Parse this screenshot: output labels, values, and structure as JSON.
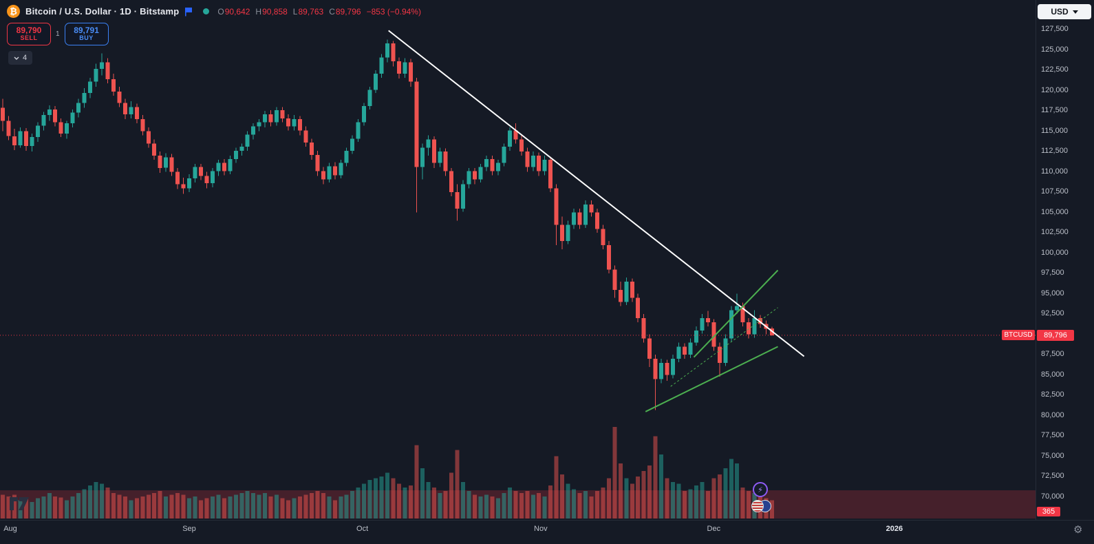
{
  "header": {
    "symbol_icon": "₿",
    "title": "Bitcoin / U.S. Dollar · 1D · Bitstamp",
    "ohlc": {
      "o_label": "O",
      "o": "90,642",
      "h_label": "H",
      "h": "90,858",
      "l_label": "L",
      "l": "89,763",
      "c_label": "C",
      "c": "89,796",
      "change": "−853 (−0.94%)"
    },
    "currency_button": "USD"
  },
  "trade": {
    "sell_price": "89,790",
    "sell_label": "SELL",
    "spread": "1",
    "buy_price": "89,791",
    "buy_label": "BUY",
    "indicator_count": "4"
  },
  "badges": {
    "symbol": "BTCUSD",
    "price": "89,796",
    "band": "365"
  },
  "icons": {
    "gear": "⚙",
    "bolt": "⚡"
  },
  "colors": {
    "background": "#151a25",
    "up": "#26a69a",
    "down": "#ef5350",
    "vol_up": "rgba(38,166,154,0.5)",
    "vol_down": "rgba(239,83,80,0.5)",
    "band": "rgba(242,54,69,0.22)",
    "accent_red": "#f23645",
    "accent_blue": "#2962ff",
    "trendline": "#ffffff",
    "channel": "#4caf50"
  },
  "chart_data": {
    "type": "candlestick",
    "symbol": "BTCUSD",
    "timeframe": "1D",
    "exchange": "Bitstamp",
    "current_price": 89796,
    "y_axis": {
      "min": 70000,
      "max": 127500,
      "step": 2500
    },
    "x_labels": [
      {
        "label": "Aug",
        "i": 1.3
      },
      {
        "label": "Sep",
        "i": 32
      },
      {
        "label": "Oct",
        "i": 61.7
      },
      {
        "label": "Nov",
        "i": 92.3
      },
      {
        "label": "Dec",
        "i": 122
      },
      {
        "label": "2026",
        "i": 153,
        "major": true
      }
    ],
    "candles": [
      [
        117800,
        118900,
        114900,
        116200,
        26
      ],
      [
        116200,
        116800,
        113800,
        114300,
        24
      ],
      [
        114300,
        115200,
        112600,
        113200,
        26
      ],
      [
        113200,
        115400,
        112900,
        114900,
        20
      ],
      [
        114900,
        115300,
        112500,
        113100,
        22
      ],
      [
        113100,
        114600,
        112400,
        114200,
        18
      ],
      [
        114200,
        116000,
        113600,
        115600,
        22
      ],
      [
        115600,
        117300,
        115000,
        116900,
        24
      ],
      [
        116900,
        118100,
        116200,
        117600,
        28
      ],
      [
        117600,
        118000,
        115500,
        116000,
        24
      ],
      [
        116000,
        116500,
        114200,
        114600,
        23
      ],
      [
        114600,
        116200,
        114000,
        115900,
        20
      ],
      [
        115900,
        117600,
        115400,
        117200,
        24
      ],
      [
        117200,
        118900,
        116600,
        118400,
        28
      ],
      [
        118400,
        120200,
        117800,
        119600,
        32
      ],
      [
        119600,
        121500,
        119000,
        121000,
        36
      ],
      [
        121000,
        123200,
        120400,
        122600,
        40
      ],
      [
        122600,
        124500,
        121800,
        123400,
        38
      ],
      [
        123400,
        123900,
        120800,
        121300,
        34
      ],
      [
        121300,
        122000,
        119300,
        119800,
        28
      ],
      [
        119800,
        120400,
        117900,
        118400,
        26
      ],
      [
        118400,
        118900,
        116400,
        117000,
        24
      ],
      [
        117000,
        118600,
        116500,
        117900,
        20
      ],
      [
        117900,
        118300,
        115900,
        116400,
        22
      ],
      [
        116400,
        116900,
        114400,
        114900,
        24
      ],
      [
        114900,
        115400,
        112900,
        113400,
        26
      ],
      [
        113400,
        113900,
        111400,
        111900,
        28
      ],
      [
        111900,
        112400,
        109800,
        110400,
        30
      ],
      [
        110400,
        112200,
        109900,
        111700,
        24
      ],
      [
        111700,
        112100,
        109400,
        109900,
        26
      ],
      [
        109900,
        110400,
        107800,
        108400,
        28
      ],
      [
        108400,
        109200,
        107200,
        107900,
        26
      ],
      [
        107900,
        109600,
        107400,
        109100,
        22
      ],
      [
        109100,
        110900,
        108600,
        110500,
        24
      ],
      [
        110500,
        110900,
        108900,
        109400,
        20
      ],
      [
        109400,
        109900,
        107900,
        108500,
        22
      ],
      [
        108500,
        110400,
        108000,
        110000,
        24
      ],
      [
        110000,
        111400,
        109400,
        111000,
        26
      ],
      [
        111000,
        111500,
        109500,
        110000,
        22
      ],
      [
        110000,
        111900,
        109600,
        111500,
        24
      ],
      [
        111500,
        112900,
        111000,
        112500,
        26
      ],
      [
        112500,
        113400,
        111900,
        113000,
        28
      ],
      [
        113000,
        114900,
        112500,
        114500,
        30
      ],
      [
        114500,
        115900,
        113900,
        115500,
        28
      ],
      [
        115500,
        116400,
        114900,
        116000,
        26
      ],
      [
        116000,
        117400,
        115400,
        117000,
        28
      ],
      [
        117000,
        117500,
        115500,
        116000,
        24
      ],
      [
        116000,
        117900,
        115600,
        117500,
        26
      ],
      [
        117500,
        117900,
        116000,
        116500,
        22
      ],
      [
        116500,
        117000,
        115000,
        115500,
        20
      ],
      [
        115500,
        116900,
        115000,
        116400,
        22
      ],
      [
        116400,
        116800,
        114400,
        115000,
        24
      ],
      [
        115000,
        115500,
        113000,
        113500,
        26
      ],
      [
        113500,
        114000,
        111400,
        112000,
        28
      ],
      [
        112000,
        112500,
        109400,
        110000,
        30
      ],
      [
        110000,
        110500,
        108400,
        109000,
        28
      ],
      [
        109000,
        111000,
        108600,
        110600,
        24
      ],
      [
        110600,
        111100,
        109000,
        109500,
        20
      ],
      [
        109500,
        111400,
        109100,
        111000,
        24
      ],
      [
        111000,
        112900,
        110600,
        112500,
        26
      ],
      [
        112500,
        114400,
        112100,
        114000,
        30
      ],
      [
        114000,
        116400,
        113600,
        116000,
        34
      ],
      [
        116000,
        118400,
        115600,
        118000,
        38
      ],
      [
        118000,
        120400,
        117600,
        120000,
        42
      ],
      [
        120000,
        122400,
        119600,
        122000,
        44
      ],
      [
        122000,
        124400,
        121500,
        124000,
        46
      ],
      [
        124000,
        126200,
        123400,
        125700,
        50
      ],
      [
        125700,
        126000,
        122900,
        123500,
        44
      ],
      [
        123500,
        124000,
        121400,
        122000,
        38
      ],
      [
        122000,
        123900,
        121500,
        123400,
        34
      ],
      [
        123400,
        123800,
        120400,
        121000,
        36
      ],
      [
        121000,
        121500,
        104900,
        110500,
        80
      ],
      [
        110500,
        113400,
        109000,
        112900,
        55
      ],
      [
        112900,
        114400,
        111900,
        113900,
        40
      ],
      [
        113900,
        114300,
        110400,
        111000,
        34
      ],
      [
        111000,
        112900,
        110500,
        112400,
        28
      ],
      [
        112400,
        112800,
        109400,
        110000,
        30
      ],
      [
        110000,
        110400,
        106900,
        107400,
        50
      ],
      [
        107400,
        108400,
        103900,
        105400,
        75
      ],
      [
        105400,
        108900,
        105000,
        108400,
        40
      ],
      [
        108400,
        110400,
        107900,
        110000,
        30
      ],
      [
        110000,
        110400,
        108400,
        109000,
        26
      ],
      [
        109000,
        110900,
        108600,
        110500,
        24
      ],
      [
        110500,
        111900,
        110000,
        111500,
        26
      ],
      [
        111500,
        111900,
        109500,
        110000,
        24
      ],
      [
        110000,
        111400,
        109500,
        111000,
        22
      ],
      [
        111000,
        113400,
        110600,
        113000,
        28
      ],
      [
        113000,
        115400,
        112500,
        115000,
        34
      ],
      [
        115000,
        115900,
        113400,
        113900,
        30
      ],
      [
        113900,
        114400,
        111900,
        112400,
        28
      ],
      [
        112400,
        112900,
        109900,
        110500,
        30
      ],
      [
        110500,
        112400,
        110000,
        111900,
        26
      ],
      [
        111900,
        112300,
        109400,
        110000,
        28
      ],
      [
        110000,
        111900,
        109500,
        111400,
        24
      ],
      [
        111400,
        111800,
        107400,
        107900,
        36
      ],
      [
        107900,
        108400,
        100900,
        103400,
        68
      ],
      [
        103400,
        104400,
        100400,
        101400,
        48
      ],
      [
        101400,
        103900,
        101000,
        103400,
        38
      ],
      [
        103400,
        105400,
        102900,
        104900,
        32
      ],
      [
        104900,
        105400,
        102900,
        103400,
        28
      ],
      [
        103400,
        106400,
        103000,
        105900,
        30
      ],
      [
        105900,
        106400,
        104400,
        104900,
        24
      ],
      [
        104900,
        105400,
        102400,
        102900,
        30
      ],
      [
        102900,
        103400,
        100400,
        100900,
        34
      ],
      [
        100900,
        101400,
        97400,
        97900,
        44
      ],
      [
        97900,
        98400,
        94400,
        95400,
        100
      ],
      [
        95400,
        96400,
        93400,
        93900,
        60
      ],
      [
        93900,
        96900,
        93500,
        96400,
        44
      ],
      [
        96400,
        96800,
        93900,
        94400,
        38
      ],
      [
        94400,
        94900,
        91400,
        91900,
        46
      ],
      [
        91900,
        92400,
        88900,
        89400,
        52
      ],
      [
        89400,
        89900,
        85900,
        86900,
        58
      ],
      [
        86900,
        87400,
        80600,
        84400,
        90
      ],
      [
        84400,
        86900,
        83900,
        86400,
        70
      ],
      [
        86400,
        86800,
        84200,
        84900,
        44
      ],
      [
        84900,
        87400,
        84500,
        86900,
        40
      ],
      [
        86900,
        88900,
        86500,
        88400,
        38
      ],
      [
        88400,
        88800,
        86900,
        87400,
        30
      ],
      [
        87400,
        89400,
        87000,
        88900,
        32
      ],
      [
        88900,
        90900,
        88500,
        90400,
        36
      ],
      [
        90400,
        92400,
        90000,
        91900,
        40
      ],
      [
        91900,
        92800,
        90900,
        91400,
        30
      ],
      [
        91400,
        91800,
        87900,
        88400,
        44
      ],
      [
        88400,
        88900,
        84700,
        86400,
        48
      ],
      [
        86400,
        89900,
        86000,
        89400,
        55
      ],
      [
        89400,
        93400,
        89000,
        92900,
        65
      ],
      [
        92900,
        94900,
        92400,
        93400,
        60
      ],
      [
        93400,
        93800,
        90900,
        91400,
        34
      ],
      [
        91400,
        91900,
        89400,
        89900,
        30
      ],
      [
        89900,
        92900,
        89500,
        91900,
        28
      ],
      [
        91900,
        92300,
        90700,
        91200,
        24
      ],
      [
        91200,
        91600,
        89900,
        90600,
        22
      ],
      [
        90642,
        90858,
        89763,
        89796,
        20
      ]
    ],
    "annotations": [
      {
        "name": "trendline",
        "i1": 66.2,
        "p1": 127300,
        "i2": 137.5,
        "p2": 87200,
        "color": "#ffffff",
        "width": 2
      },
      {
        "name": "channel-lower-line",
        "i1": 110.3,
        "p1": 80400,
        "i2": 133,
        "p2": 88400,
        "color": "#4caf50",
        "width": 2
      },
      {
        "name": "channel-upper-line",
        "i1": 118.6,
        "p1": 87100,
        "i2": 133,
        "p2": 97800,
        "color": "#4caf50",
        "width": 2
      },
      {
        "name": "channel-median-line",
        "i1": 114.6,
        "p1": 83500,
        "i2": 133,
        "p2": 93200,
        "color": "#4caf50",
        "width": 1,
        "dash": "3,3"
      }
    ]
  }
}
